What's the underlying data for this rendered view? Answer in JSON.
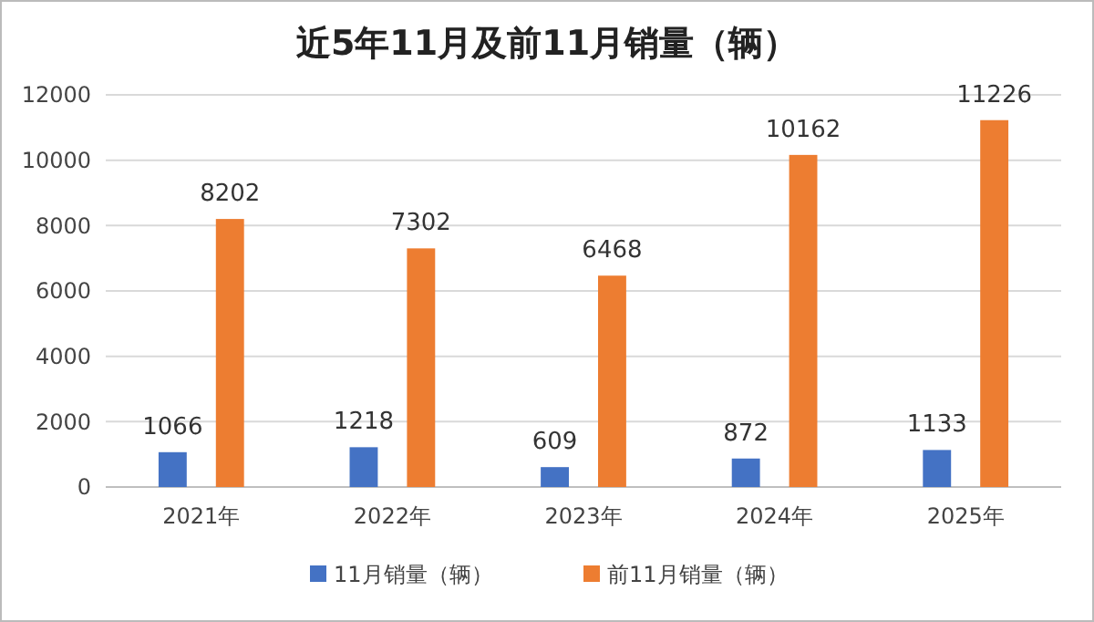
{
  "chart_data": {
    "type": "bar",
    "title": "近5年11月及前11月销量（辆）",
    "categories": [
      "2021年",
      "2022年",
      "2023年",
      "2024年",
      "2025年"
    ],
    "series": [
      {
        "name": "11月销量（辆）",
        "color": "#4472c4",
        "values": [
          1066,
          1218,
          609,
          872,
          1133
        ]
      },
      {
        "name": "前11月销量（辆）",
        "color": "#ed7d31",
        "values": [
          8202,
          7302,
          6468,
          10162,
          11226
        ]
      }
    ],
    "ylim": [
      0,
      12000
    ],
    "yticks": [
      0,
      2000,
      4000,
      6000,
      8000,
      10000,
      12000
    ],
    "grid": "y",
    "legend": "bottom",
    "data_labels": true
  }
}
